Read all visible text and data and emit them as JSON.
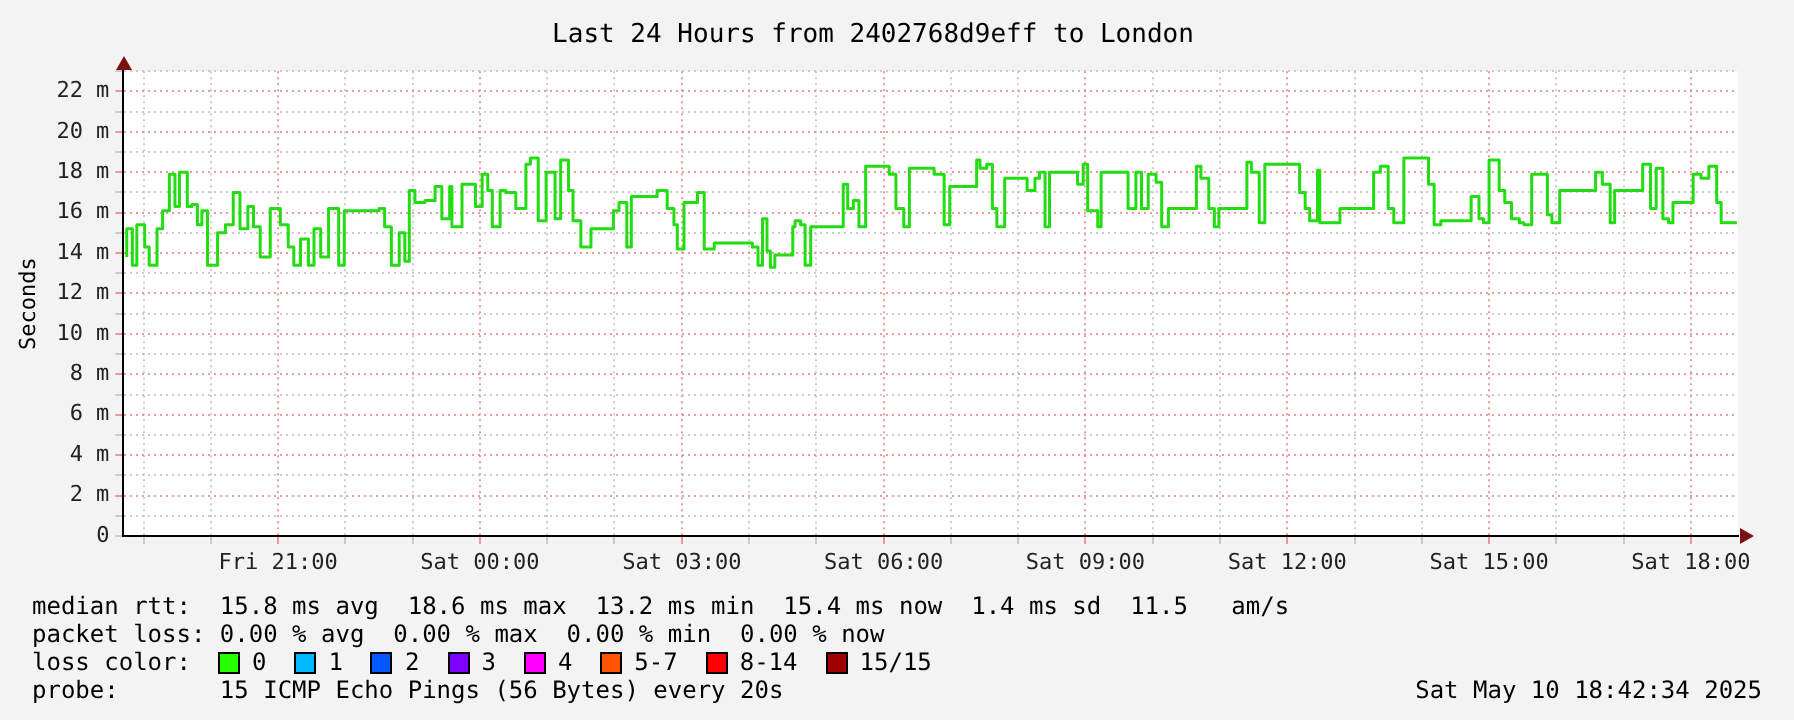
{
  "chart_data": {
    "type": "step",
    "title": "Last 24 Hours from 2402768d9eff to London",
    "ylabel": "Seconds",
    "xlim": [
      "2025-05-09T18:42",
      "2025-05-10T18:42"
    ],
    "xticks": [
      {
        "value": "2025-05-09T19:00",
        "label": null
      },
      {
        "value": "2025-05-09T20:00",
        "label": null
      },
      {
        "value": "2025-05-09T21:00",
        "label": "Fri 21:00"
      },
      {
        "value": "2025-05-09T22:00",
        "label": null
      },
      {
        "value": "2025-05-09T23:00",
        "label": null
      },
      {
        "value": "2025-05-10T00:00",
        "label": "Sat 00:00"
      },
      {
        "value": "2025-05-10T01:00",
        "label": null
      },
      {
        "value": "2025-05-10T02:00",
        "label": null
      },
      {
        "value": "2025-05-10T03:00",
        "label": "Sat 03:00"
      },
      {
        "value": "2025-05-10T04:00",
        "label": null
      },
      {
        "value": "2025-05-10T05:00",
        "label": null
      },
      {
        "value": "2025-05-10T06:00",
        "label": "Sat 06:00"
      },
      {
        "value": "2025-05-10T07:00",
        "label": null
      },
      {
        "value": "2025-05-10T08:00",
        "label": null
      },
      {
        "value": "2025-05-10T09:00",
        "label": "Sat 09:00"
      },
      {
        "value": "2025-05-10T10:00",
        "label": null
      },
      {
        "value": "2025-05-10T11:00",
        "label": null
      },
      {
        "value": "2025-05-10T12:00",
        "label": "Sat 12:00"
      },
      {
        "value": "2025-05-10T13:00",
        "label": null
      },
      {
        "value": "2025-05-10T14:00",
        "label": null
      },
      {
        "value": "2025-05-10T15:00",
        "label": "Sat 15:00"
      },
      {
        "value": "2025-05-10T16:00",
        "label": null
      },
      {
        "value": "2025-05-10T17:00",
        "label": null
      },
      {
        "value": "2025-05-10T18:00",
        "label": "Sat 18:00"
      }
    ],
    "ylim": [
      0,
      23
    ],
    "yticks": [
      0,
      {
        "value": 1,
        "label": null
      },
      {
        "value": 2,
        "label": "2 m"
      },
      {
        "value": 3,
        "label": null
      },
      {
        "value": 4,
        "label": "4 m"
      },
      {
        "value": 5,
        "label": null
      },
      {
        "value": 6,
        "label": "6 m"
      },
      {
        "value": 7,
        "label": null
      },
      {
        "value": 8,
        "label": "8 m"
      },
      {
        "value": 9,
        "label": null
      },
      {
        "value": 10,
        "label": "10 m"
      },
      {
        "value": 11,
        "label": null
      },
      {
        "value": 12,
        "label": "12 m"
      },
      {
        "value": 13,
        "label": null
      },
      {
        "value": 14,
        "label": "14 m"
      },
      {
        "value": 15,
        "label": null
      },
      {
        "value": 16,
        "label": "16 m"
      },
      {
        "value": 17,
        "label": null
      },
      {
        "value": 18,
        "label": "18 m"
      },
      {
        "value": 19,
        "label": null
      },
      {
        "value": 20,
        "label": "20 m"
      },
      {
        "value": 21,
        "label": null
      },
      {
        "value": 22,
        "label": "22 m"
      },
      {
        "value": 23,
        "label": null
      }
    ],
    "grid": true,
    "legend": false,
    "marker": "none",
    "line_style": "solid",
    "series": [
      {
        "color": "#22dd11",
        "x": [
          "2025-05-09T18:45",
          "2025-05-09T18:50",
          "2025-05-09T18:54",
          "2025-05-09T19:01",
          "2025-05-09T19:05",
          "2025-05-09T19:12",
          "2025-05-09T19:17",
          "2025-05-09T19:23",
          "2025-05-09T19:28",
          "2025-05-09T19:32",
          "2025-05-09T19:39",
          "2025-05-09T19:43",
          "2025-05-09T19:48",
          "2025-05-09T19:52",
          "2025-05-09T19:57",
          "2025-05-09T20:06",
          "2025-05-09T20:13",
          "2025-05-09T20:20",
          "2025-05-09T20:26",
          "2025-05-09T20:33",
          "2025-05-09T20:38",
          "2025-05-09T20:44",
          "2025-05-09T20:53",
          "2025-05-09T21:02",
          "2025-05-09T21:09",
          "2025-05-09T21:14",
          "2025-05-09T21:20",
          "2025-05-09T21:27",
          "2025-05-09T21:32",
          "2025-05-09T21:38",
          "2025-05-09T21:45",
          "2025-05-09T21:54",
          "2025-05-09T21:59",
          "2025-05-09T22:30",
          "2025-05-09T22:35",
          "2025-05-09T22:41",
          "2025-05-09T22:48",
          "2025-05-09T22:53",
          "2025-05-09T22:57",
          "2025-05-09T23:02",
          "2025-05-09T23:11",
          "2025-05-09T23:20",
          "2025-05-09T23:26",
          "2025-05-09T23:33",
          "2025-05-09T23:35",
          "2025-05-09T23:44",
          "2025-05-09T23:56",
          "2025-05-10T00:02",
          "2025-05-10T00:07",
          "2025-05-10T00:11",
          "2025-05-10T00:18",
          "2025-05-10T00:23",
          "2025-05-10T00:32",
          "2025-05-10T00:41",
          "2025-05-10T00:45",
          "2025-05-10T00:52",
          "2025-05-10T00:59",
          "2025-05-10T01:07",
          "2025-05-10T01:12",
          "2025-05-10T01:19",
          "2025-05-10T01:23",
          "2025-05-10T01:30",
          "2025-05-10T01:39",
          "2025-05-10T01:59",
          "2025-05-10T02:04",
          "2025-05-10T02:11",
          "2025-05-10T02:15",
          "2025-05-10T02:38",
          "2025-05-10T02:47",
          "2025-05-10T02:53",
          "2025-05-10T02:56",
          "2025-05-10T03:02",
          "2025-05-10T03:14",
          "2025-05-10T03:20",
          "2025-05-10T03:29",
          "2025-05-10T04:03",
          "2025-05-10T04:08",
          "2025-05-10T04:12",
          "2025-05-10T04:16",
          "2025-05-10T04:19",
          "2025-05-10T04:23",
          "2025-05-10T04:39",
          "2025-05-10T04:41",
          "2025-05-10T04:46",
          "2025-05-10T04:50",
          "2025-05-10T04:55",
          "2025-05-10T05:24",
          "2025-05-10T05:28",
          "2025-05-10T05:33",
          "2025-05-10T05:38",
          "2025-05-10T05:44",
          "2025-05-10T06:05",
          "2025-05-10T06:11",
          "2025-05-10T06:18",
          "2025-05-10T06:23",
          "2025-05-10T06:45",
          "2025-05-10T06:54",
          "2025-05-10T06:59",
          "2025-05-10T07:23",
          "2025-05-10T07:26",
          "2025-05-10T07:32",
          "2025-05-10T07:37",
          "2025-05-10T07:41",
          "2025-05-10T07:48",
          "2025-05-10T08:08",
          "2025-05-10T08:15",
          "2025-05-10T08:19",
          "2025-05-10T08:24",
          "2025-05-10T08:28",
          "2025-05-10T08:53",
          "2025-05-10T08:58",
          "2025-05-10T09:02",
          "2025-05-10T09:11",
          "2025-05-10T09:14",
          "2025-05-10T09:38",
          "2025-05-10T09:45",
          "2025-05-10T09:50",
          "2025-05-10T09:56",
          "2025-05-10T10:03",
          "2025-05-10T10:08",
          "2025-05-10T10:14",
          "2025-05-10T10:39",
          "2025-05-10T10:43",
          "2025-05-10T10:50",
          "2025-05-10T10:55",
          "2025-05-10T10:59",
          "2025-05-10T11:24",
          "2025-05-10T11:28",
          "2025-05-10T11:35",
          "2025-05-10T11:40",
          "2025-05-10T12:11",
          "2025-05-10T12:16",
          "2025-05-10T12:20",
          "2025-05-10T12:27",
          "2025-05-10T12:29",
          "2025-05-10T12:47",
          "2025-05-10T13:17",
          "2025-05-10T13:23",
          "2025-05-10T13:30",
          "2025-05-10T13:35",
          "2025-05-10T13:44",
          "2025-05-10T14:06",
          "2025-05-10T14:11",
          "2025-05-10T14:17",
          "2025-05-10T14:44",
          "2025-05-10T14:51",
          "2025-05-10T14:55",
          "2025-05-10T15:00",
          "2025-05-10T15:09",
          "2025-05-10T15:14",
          "2025-05-10T15:20",
          "2025-05-10T15:27",
          "2025-05-10T15:31",
          "2025-05-10T15:38",
          "2025-05-10T15:52",
          "2025-05-10T15:56",
          "2025-05-10T16:03",
          "2025-05-10T16:35",
          "2025-05-10T16:41",
          "2025-05-10T16:48",
          "2025-05-10T16:52",
          "2025-05-10T17:17",
          "2025-05-10T17:24",
          "2025-05-10T17:29",
          "2025-05-10T17:35",
          "2025-05-10T17:40",
          "2025-05-10T17:44",
          "2025-05-10T18:02",
          "2025-05-10T18:09",
          "2025-05-10T18:16",
          "2025-05-10T18:23",
          "2025-05-10T18:27",
          "2025-05-10T18:29",
          "2025-05-10T18:41"
        ],
        "values": [
          13.8,
          15.2,
          13.4,
          15.4,
          14.3,
          13.4,
          15.2,
          16.1,
          17.9,
          16.3,
          18.0,
          16.3,
          16.4,
          15.4,
          16.1,
          13.4,
          15.0,
          15.4,
          17.0,
          15.2,
          16.3,
          15.3,
          13.8,
          16.2,
          15.4,
          14.3,
          13.4,
          14.7,
          13.4,
          15.2,
          13.8,
          16.2,
          13.4,
          16.1,
          16.2,
          15.3,
          13.4,
          15.0,
          13.6,
          17.1,
          16.5,
          16.6,
          17.3,
          15.7,
          17.3,
          15.3,
          17.4,
          16.3,
          17.9,
          17.1,
          15.3,
          17.1,
          17.0,
          16.2,
          18.4,
          18.7,
          15.6,
          18.0,
          15.7,
          18.6,
          17.1,
          15.6,
          14.3,
          15.2,
          16.1,
          16.5,
          14.3,
          16.8,
          17.1,
          16.2,
          15.4,
          14.2,
          16.5,
          17.0,
          14.2,
          14.5,
          14.3,
          13.4,
          15.7,
          14.1,
          13.3,
          13.9,
          15.3,
          15.6,
          15.4,
          13.4,
          15.3,
          17.4,
          16.2,
          16.6,
          15.3,
          18.3,
          17.9,
          16.2,
          15.3,
          18.2,
          17.9,
          15.4,
          17.3,
          18.6,
          18.2,
          18.4,
          16.2,
          15.3,
          17.7,
          17.1,
          17.7,
          18.0,
          15.3,
          18.0,
          17.4,
          18.4,
          16.1,
          15.3,
          18.0,
          16.2,
          18.0,
          16.2,
          17.9,
          17.5,
          15.3,
          16.2,
          18.3,
          17.7,
          16.2,
          15.3,
          16.2,
          18.5,
          18.0,
          15.5,
          18.4,
          17.0,
          16.2,
          15.6,
          18.1,
          15.5,
          16.2,
          18.0,
          18.3,
          16.2,
          15.5,
          18.7,
          17.4,
          15.4,
          15.6,
          16.8,
          15.7,
          15.5,
          18.6,
          17.1,
          16.5,
          15.7,
          15.5,
          15.4,
          17.9,
          15.9,
          15.5,
          17.1,
          18.0,
          17.4,
          15.5,
          17.1,
          18.4,
          16.2,
          18.2,
          15.7,
          15.5,
          16.5,
          17.9,
          17.7,
          18.3,
          16.5,
          15.5,
          15.5
        ]
      }
    ],
    "annotations": [
      "median rtt:  15.8 ms avg  18.6 ms max  13.2 ms min  15.4 ms now  1.4 ms sd  11.5   am/s",
      "packet loss: 0.00 % avg  0.00 % max  0.00 % min  0.00 % now",
      "loss color:",
      "0",
      "1",
      "2",
      "3",
      "4",
      "5-7",
      "8-14",
      "15/15",
      "probe:       15 ICMP Echo Pings (56 Bytes) every 20s",
      "Sat May 10 18:42:34 2025"
    ]
  }
}
